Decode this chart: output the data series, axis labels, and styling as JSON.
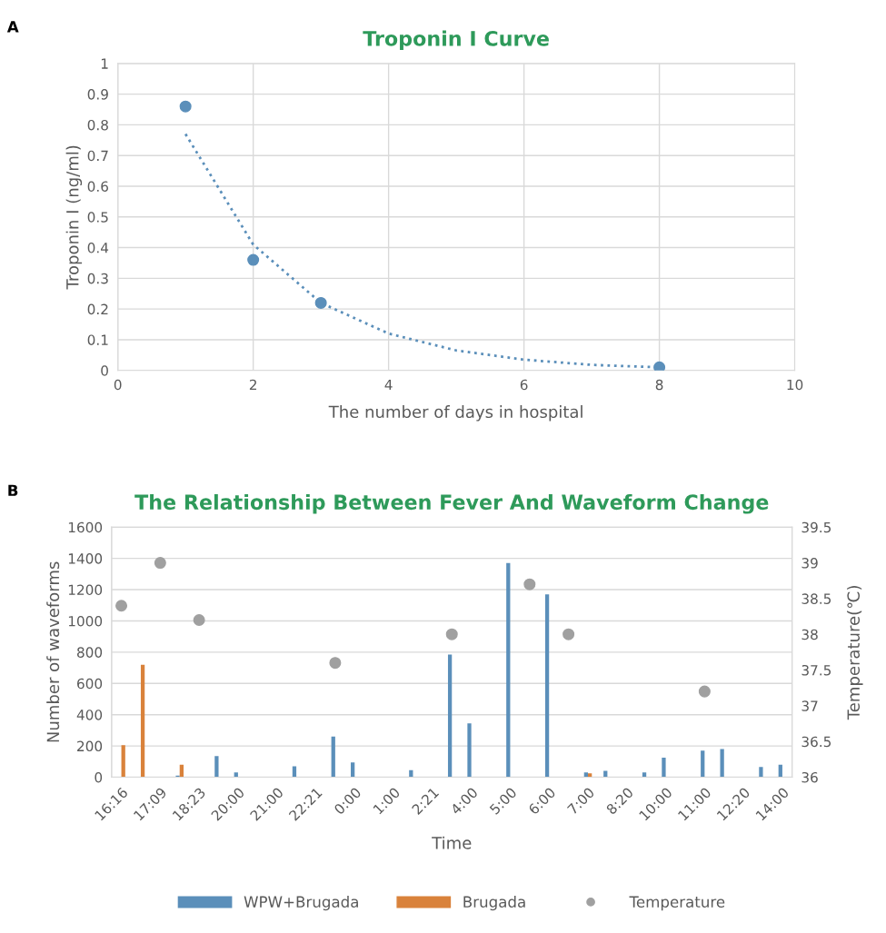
{
  "chart_data": [
    {
      "type": "scatter",
      "title": "Troponin I Curve",
      "xlabel": "The number of days in hospital",
      "ylabel": "Troponin I (ng/ml)",
      "annotations": [
        "A"
      ],
      "x": [
        1,
        2,
        3,
        8
      ],
      "xlim": [
        0,
        10
      ],
      "xticks": [
        0,
        2,
        4,
        6,
        8,
        10
      ],
      "ylim": [
        0,
        1
      ],
      "yticks": [
        0,
        0.1,
        0.2,
        0.3,
        0.4,
        0.5,
        0.6,
        0.7,
        0.8,
        0.9,
        1
      ],
      "grid": true,
      "marker": "circle",
      "series": [
        {
          "type": "scatter",
          "color": "#5b8fba",
          "values": [
            0.86,
            0.36,
            0.22,
            0.01
          ]
        },
        {
          "type": "line",
          "line_style": "dotted",
          "marker": "none",
          "color": "#5b8fba",
          "x": [
            1,
            2,
            3,
            4,
            5,
            6,
            7,
            8
          ],
          "values": [
            0.77,
            0.41,
            0.22,
            0.12,
            0.065,
            0.035,
            0.018,
            0.01
          ]
        }
      ]
    },
    {
      "type": "bar",
      "title": "The Relationship Between Fever And Waveform Change",
      "xlabel": "Time",
      "ylabel": "Number of waveforms",
      "y2label": "Temperature(℃)",
      "annotations": [
        "B"
      ],
      "categories": [
        "16:16",
        null,
        "17:09",
        null,
        "18:23",
        null,
        "20:00",
        null,
        "21:00",
        null,
        "22:21",
        null,
        "0:00",
        null,
        "1:00",
        null,
        "2:21",
        null,
        "4:00",
        null,
        "5:00",
        null,
        "6:00",
        null,
        "7:00",
        null,
        "8:20",
        null,
        "10:00",
        null,
        "11:00",
        null,
        "12:20",
        null,
        "14:00"
      ],
      "ylim": [
        0,
        1600
      ],
      "yticks": [
        0,
        200,
        400,
        600,
        800,
        1000,
        1200,
        1400,
        1600
      ],
      "y2lim": [
        36,
        39.5
      ],
      "y2ticks": [
        36,
        36.5,
        37,
        37.5,
        38,
        38.5,
        39,
        39.5
      ],
      "grid": "y",
      "legend": "bottom",
      "series": [
        {
          "name": "WPW+Brugada",
          "color": "#5b8fba",
          "values": [
            0,
            0,
            0,
            10,
            0,
            135,
            30,
            0,
            0,
            70,
            0,
            260,
            95,
            0,
            0,
            45,
            0,
            785,
            345,
            0,
            1370,
            0,
            1170,
            0,
            30,
            40,
            0,
            30,
            125,
            0,
            170,
            180,
            0,
            65,
            80
          ]
        },
        {
          "name": "Brugada",
          "color": "#d9823b",
          "values": [
            205,
            720,
            0,
            80,
            0,
            0,
            0,
            0,
            0,
            0,
            0,
            0,
            0,
            0,
            0,
            0,
            0,
            0,
            0,
            0,
            0,
            0,
            0,
            0,
            25,
            0,
            0,
            0,
            0,
            0,
            0,
            0,
            0,
            0,
            0
          ]
        },
        {
          "name": "Temperature",
          "type": "scatter",
          "axis": "y2",
          "marker": "circle",
          "color": "#a0a0a0",
          "values": [
            38.4,
            null,
            39.0,
            null,
            38.2,
            null,
            null,
            null,
            null,
            null,
            null,
            37.6,
            null,
            null,
            null,
            null,
            null,
            38.0,
            null,
            null,
            null,
            38.7,
            null,
            38.0,
            null,
            null,
            null,
            null,
            null,
            null,
            37.2,
            null,
            null,
            null,
            null
          ]
        }
      ]
    }
  ]
}
